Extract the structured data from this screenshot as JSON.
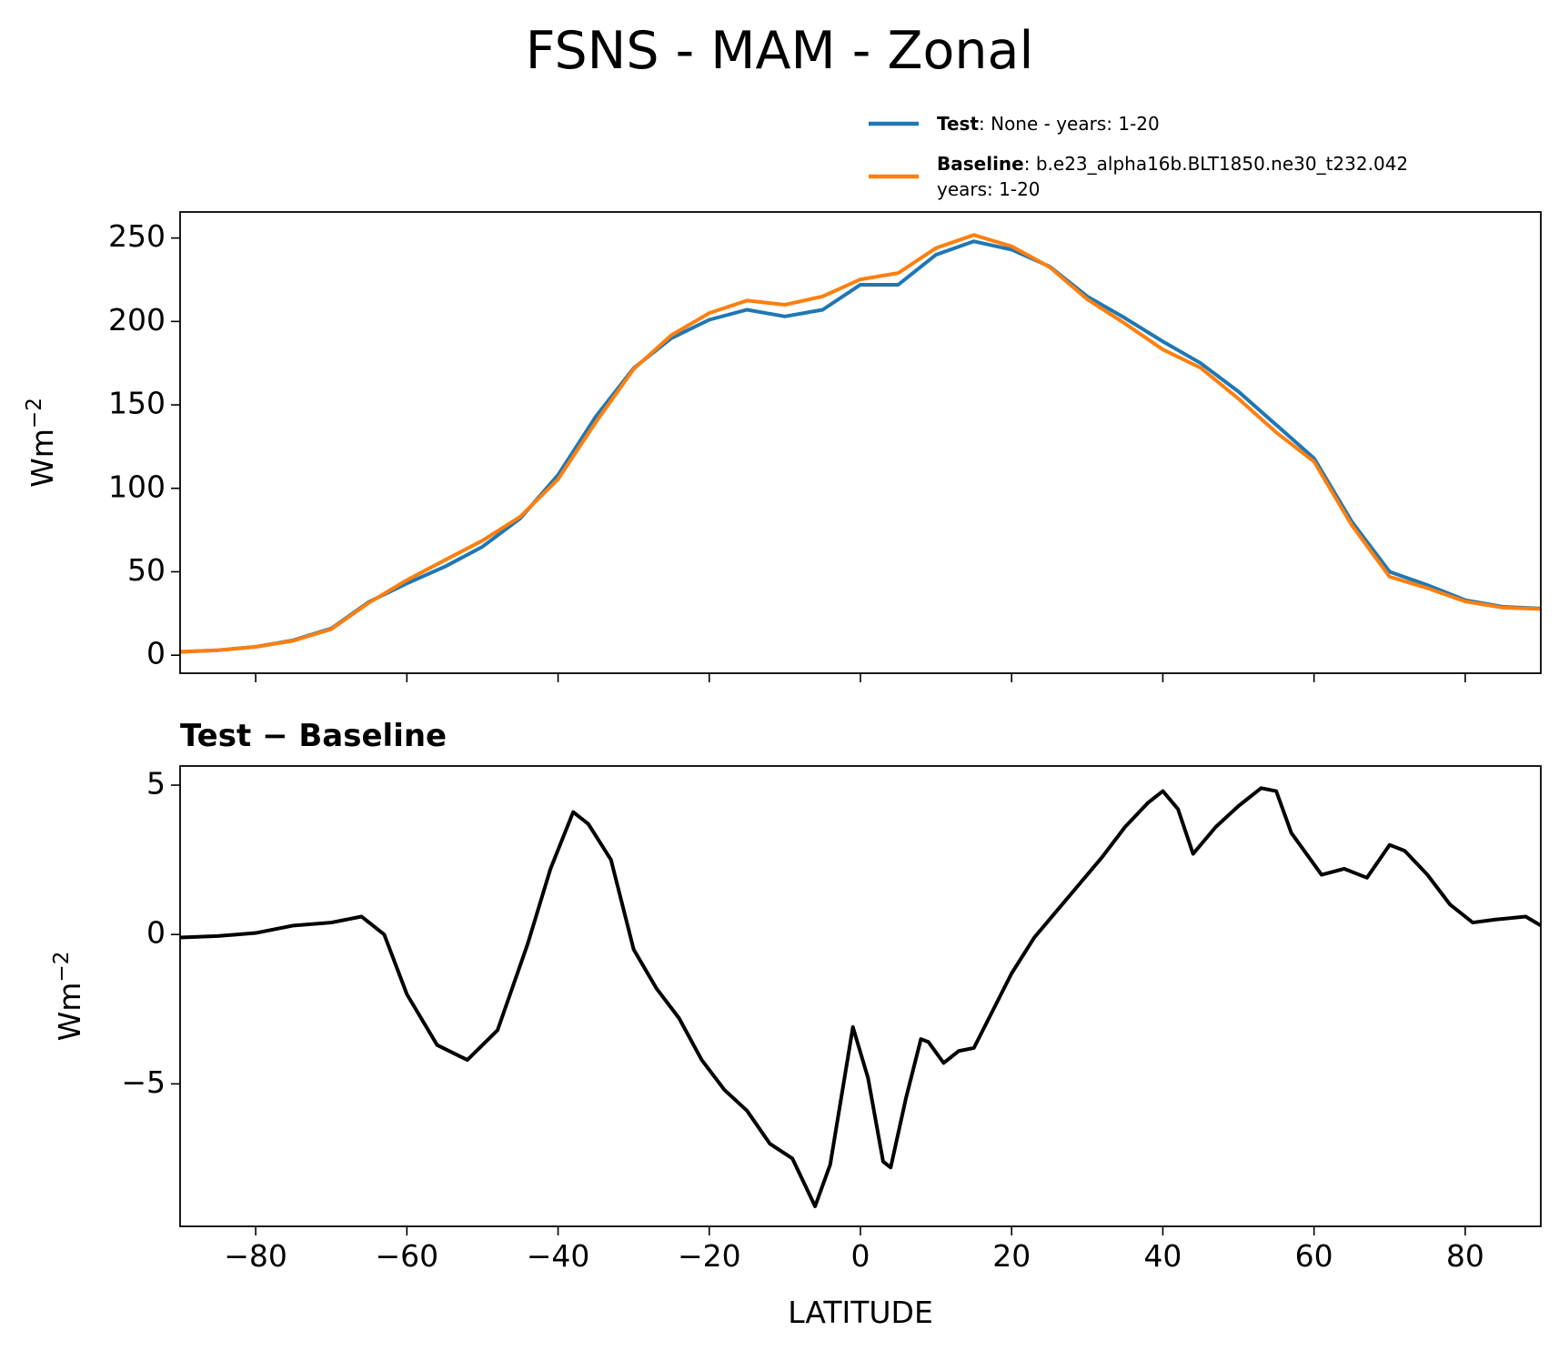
{
  "chart_data": [
    {
      "type": "line",
      "title": "FSNS - MAM - Zonal",
      "ylabel": "Wm",
      "ylabel_exponent": "−2",
      "x": [
        -90,
        -85,
        -80,
        -75,
        -70,
        -65,
        -60,
        -55,
        -50,
        -45,
        -40,
        -35,
        -30,
        -25,
        -20,
        -15,
        -10,
        -5,
        0,
        5,
        10,
        15,
        20,
        25,
        30,
        35,
        40,
        45,
        50,
        55,
        60,
        65,
        70,
        75,
        80,
        85,
        90
      ],
      "series": [
        {
          "name": "Test",
          "legend_text": [
            ": None - years: 1-20"
          ],
          "color": "#1f77b4",
          "values": [
            2,
            3,
            5,
            9,
            16,
            32,
            43,
            53,
            65,
            82,
            108,
            143,
            172,
            190,
            201,
            207,
            203,
            207,
            222,
            222,
            240,
            248,
            243,
            233,
            215,
            202,
            188,
            175,
            158,
            138,
            118,
            80,
            50,
            42,
            33,
            29,
            28
          ]
        },
        {
          "name": "Baseline",
          "legend_text": [
            ": b.e23_alpha16b.BLT1850.ne30_t232.042",
            "years: 1-20"
          ],
          "color": "#ff7f0e",
          "values": [
            2.1,
            3,
            5,
            8.7,
            15.6,
            31.5,
            45,
            56.9,
            68.7,
            83,
            105.5,
            139.7,
            171.5,
            191.8,
            205,
            212.5,
            210,
            215,
            225.2,
            229,
            244,
            251.8,
            245,
            232.7,
            213.3,
            198.7,
            183.2,
            172.2,
            153.7,
            133.5,
            116,
            77.9,
            47,
            40.2,
            32.2,
            28.5,
            27.7
          ]
        }
      ],
      "xlim": [
        -90,
        90
      ],
      "xticks": [
        -80,
        -60,
        -40,
        -20,
        0,
        20,
        40,
        60,
        80
      ],
      "ylim": [
        -10.8,
        265.6
      ],
      "yticks": [
        0,
        50,
        100,
        150,
        200,
        250
      ]
    },
    {
      "type": "line",
      "title": "Test − Baseline",
      "ylabel": "Wm",
      "ylabel_exponent": "−2",
      "xlabel": "LATITUDE",
      "x": [
        -90,
        -85,
        -80,
        -75,
        -70,
        -66,
        -63,
        -60,
        -56,
        -52,
        -48,
        -44,
        -41,
        -38,
        -36,
        -33,
        -30,
        -27,
        -24,
        -21,
        -18,
        -15,
        -12,
        -9,
        -6,
        -4,
        -1,
        1,
        3,
        4,
        6,
        8,
        9,
        11,
        13,
        15,
        17,
        20,
        23,
        26,
        29,
        32,
        35,
        38,
        40,
        42,
        44,
        47,
        50,
        53,
        55,
        57,
        59,
        61,
        64,
        67,
        70,
        72,
        75,
        78,
        81,
        84,
        88,
        90
      ],
      "series": [
        {
          "color": "#000000",
          "values": [
            -0.1,
            -0.05,
            0.05,
            0.3,
            0.4,
            0.6,
            0,
            -2,
            -3.7,
            -4.2,
            -3.2,
            -0.3,
            2.2,
            4.1,
            3.7,
            2.5,
            -0.5,
            -1.8,
            -2.8,
            -4.2,
            -5.2,
            -5.9,
            -7,
            -7.5,
            -9.1,
            -7.7,
            -3.1,
            -4.8,
            -7.6,
            -7.8,
            -5.5,
            -3.5,
            -3.6,
            -4.3,
            -3.9,
            -3.8,
            -2.8,
            -1.3,
            -0.1,
            0.8,
            1.7,
            2.6,
            3.6,
            4.4,
            4.8,
            4.2,
            2.7,
            3.6,
            4.3,
            4.9,
            4.8,
            3.4,
            2.7,
            2.0,
            2.2,
            1.9,
            3.0,
            2.8,
            2.0,
            1.0,
            0.4,
            0.5,
            0.6,
            0.3
          ]
        }
      ],
      "xlim": [
        -90,
        90
      ],
      "xticks": [
        {
          "value": -80,
          "label": "−80"
        },
        {
          "value": -60,
          "label": "−60"
        },
        {
          "value": -40,
          "label": "−40"
        },
        {
          "value": -20,
          "label": "−20"
        },
        0,
        20,
        40,
        60,
        80
      ],
      "ylim": [
        -9.77,
        5.64
      ],
      "yticks": [
        {
          "value": -5,
          "label": "−5"
        },
        0,
        5
      ]
    }
  ]
}
